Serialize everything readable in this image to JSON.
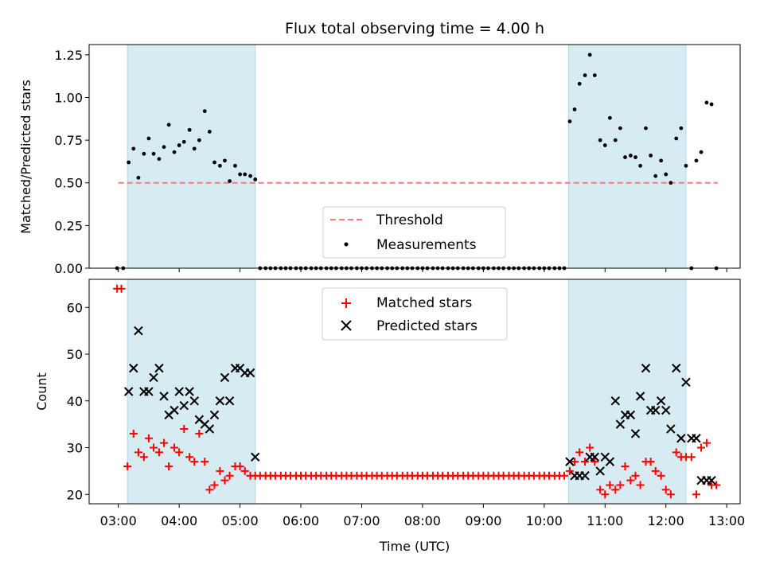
{
  "figure": {
    "title": "Flux total observing time = 4.00 h",
    "x_label": "Time (UTC)",
    "x_tick_labels": [
      "03:00",
      "04:00",
      "05:00",
      "06:00",
      "07:00",
      "08:00",
      "09:00",
      "10:00",
      "11:00",
      "12:00",
      "13:00"
    ]
  },
  "colors": {
    "threshold": "#f08080",
    "measurements": "#000000",
    "matched": "#ff0000",
    "predicted": "#000000",
    "shading": "#add8e6"
  },
  "chart_data": [
    {
      "type": "scatter",
      "panel": "top",
      "ylabel": "Matched/Predicted stars",
      "ylim": [
        0,
        1.31
      ],
      "y_tick_labels": [
        "0.00",
        "0.25",
        "0.50",
        "0.75",
        "1.00",
        "1.25"
      ],
      "x_unit": "hours UTC",
      "xlim": [
        2.52,
        13.22
      ],
      "shaded_intervals": [
        [
          3.15,
          5.25
        ],
        [
          10.4,
          12.33
        ]
      ],
      "threshold": {
        "name": "Threshold",
        "value": 0.5,
        "x_range": [
          3.0,
          12.85
        ]
      },
      "legend": [
        "Threshold",
        "Measurements"
      ],
      "legend_position": "lower center",
      "series": [
        {
          "name": "Measurements",
          "x": [
            2.98,
            3.08,
            3.17,
            3.25,
            3.33,
            3.42,
            3.5,
            3.58,
            3.67,
            3.75,
            3.83,
            3.92,
            4.0,
            4.08,
            4.17,
            4.25,
            4.33,
            4.42,
            4.5,
            4.58,
            4.67,
            4.75,
            4.83,
            4.92,
            5.0,
            5.08,
            5.17,
            5.25,
            5.33,
            5.42,
            5.5,
            5.58,
            5.67,
            5.75,
            5.83,
            5.92,
            6.0,
            6.08,
            6.17,
            6.25,
            6.33,
            6.42,
            6.5,
            6.58,
            6.67,
            6.75,
            6.83,
            6.92,
            7.0,
            7.08,
            7.17,
            7.25,
            7.33,
            7.42,
            7.5,
            7.58,
            7.67,
            7.75,
            7.83,
            7.92,
            8.0,
            8.08,
            8.17,
            8.25,
            8.33,
            8.42,
            8.5,
            8.58,
            8.67,
            8.75,
            8.83,
            8.92,
            9.0,
            9.08,
            9.17,
            9.25,
            9.33,
            9.42,
            9.5,
            9.58,
            9.67,
            9.75,
            9.83,
            9.92,
            10.0,
            10.08,
            10.17,
            10.25,
            10.33,
            10.42,
            10.5,
            10.58,
            10.67,
            10.75,
            10.83,
            10.92,
            11.0,
            11.08,
            11.17,
            11.25,
            11.33,
            11.42,
            11.5,
            11.58,
            11.67,
            11.75,
            11.83,
            11.92,
            12.0,
            12.08,
            12.17,
            12.25,
            12.33,
            12.42,
            12.5,
            12.58,
            12.67,
            12.75,
            12.83
          ],
          "y": [
            0.0,
            0.0,
            0.62,
            0.7,
            0.53,
            0.67,
            0.76,
            0.67,
            0.64,
            0.71,
            0.84,
            0.68,
            0.72,
            0.74,
            0.81,
            0.7,
            0.75,
            0.92,
            0.8,
            0.62,
            0.6,
            0.63,
            0.51,
            0.6,
            0.55,
            0.55,
            0.54,
            0.52,
            0.0,
            0.0,
            0.0,
            0.0,
            0.0,
            0.0,
            0.0,
            0.0,
            0.0,
            0.0,
            0.0,
            0.0,
            0.0,
            0.0,
            0.0,
            0.0,
            0.0,
            0.0,
            0.0,
            0.0,
            0.0,
            0.0,
            0.0,
            0.0,
            0.0,
            0.0,
            0.0,
            0.0,
            0.0,
            0.0,
            0.0,
            0.0,
            0.0,
            0.0,
            0.0,
            0.0,
            0.0,
            0.0,
            0.0,
            0.0,
            0.0,
            0.0,
            0.0,
            0.0,
            0.0,
            0.0,
            0.0,
            0.0,
            0.0,
            0.0,
            0.0,
            0.0,
            0.0,
            0.0,
            0.0,
            0.0,
            0.0,
            0.0,
            0.0,
            0.0,
            0.0,
            0.86,
            0.93,
            1.08,
            1.13,
            1.25,
            1.13,
            0.75,
            0.72,
            0.88,
            0.75,
            0.82,
            0.65,
            0.66,
            0.65,
            0.6,
            0.82,
            0.66,
            0.54,
            0.63,
            0.55,
            0.5,
            0.76,
            0.82,
            0.6,
            0.0,
            0.63,
            0.68,
            0.97,
            0.96,
            0.0
          ]
        }
      ]
    },
    {
      "type": "scatter",
      "panel": "bottom",
      "ylabel": "Count",
      "ylim": [
        18,
        66
      ],
      "y_tick_labels": [
        "20",
        "30",
        "40",
        "50",
        "60"
      ],
      "x_unit": "hours UTC",
      "xlim": [
        2.52,
        13.22
      ],
      "shaded_intervals": [
        [
          3.15,
          5.25
        ],
        [
          10.4,
          12.33
        ]
      ],
      "legend": [
        "Matched stars",
        "Predicted stars"
      ],
      "legend_position": "upper center",
      "series": [
        {
          "name": "Matched stars",
          "marker": "plus",
          "x": [
            2.98,
            3.05,
            3.15,
            3.25,
            3.33,
            3.42,
            3.5,
            3.58,
            3.67,
            3.75,
            3.83,
            3.92,
            4.0,
            4.08,
            4.17,
            4.25,
            4.33,
            4.42,
            4.5,
            4.58,
            4.67,
            4.75,
            4.83,
            4.92,
            5.0,
            5.08,
            5.17,
            5.25,
            5.33,
            5.42,
            5.5,
            5.58,
            5.67,
            5.75,
            5.83,
            5.92,
            6.0,
            6.08,
            6.17,
            6.25,
            6.33,
            6.42,
            6.5,
            6.58,
            6.67,
            6.75,
            6.83,
            6.92,
            7.0,
            7.08,
            7.17,
            7.25,
            7.33,
            7.42,
            7.5,
            7.58,
            7.67,
            7.75,
            7.83,
            7.92,
            8.0,
            8.08,
            8.17,
            8.25,
            8.33,
            8.42,
            8.5,
            8.58,
            8.67,
            8.75,
            8.83,
            8.92,
            9.0,
            9.08,
            9.17,
            9.25,
            9.33,
            9.42,
            9.5,
            9.58,
            9.67,
            9.75,
            9.83,
            9.92,
            10.0,
            10.08,
            10.17,
            10.25,
            10.33,
            10.42,
            10.5,
            10.58,
            10.67,
            10.75,
            10.83,
            10.92,
            11.0,
            11.08,
            11.17,
            11.25,
            11.33,
            11.42,
            11.5,
            11.58,
            11.67,
            11.75,
            11.83,
            11.92,
            12.0,
            12.08,
            12.17,
            12.25,
            12.33,
            12.42,
            12.5,
            12.58,
            12.67,
            12.75,
            12.83
          ],
          "y": [
            64,
            64,
            26,
            33,
            29,
            28,
            32,
            30,
            29,
            31,
            26,
            30,
            29,
            34,
            28,
            27,
            33,
            27,
            21,
            22,
            25,
            23,
            24,
            26,
            26,
            25,
            24,
            24,
            24,
            24,
            24,
            24,
            24,
            24,
            24,
            24,
            24,
            24,
            24,
            24,
            24,
            24,
            24,
            24,
            24,
            24,
            24,
            24,
            24,
            24,
            24,
            24,
            24,
            24,
            24,
            24,
            24,
            24,
            24,
            24,
            24,
            24,
            24,
            24,
            24,
            24,
            24,
            24,
            24,
            24,
            24,
            24,
            24,
            24,
            24,
            24,
            24,
            24,
            24,
            24,
            24,
            24,
            24,
            24,
            24,
            24,
            24,
            24,
            24,
            25,
            27,
            29,
            27,
            30,
            27,
            21,
            20,
            22,
            21,
            22,
            26,
            23,
            24,
            22,
            27,
            27,
            25,
            24,
            21,
            20,
            29,
            28,
            28,
            28,
            20,
            30,
            31,
            22,
            22
          ]
        },
        {
          "name": "Predicted stars",
          "marker": "x",
          "x": [
            3.17,
            3.25,
            3.33,
            3.42,
            3.5,
            3.58,
            3.67,
            3.75,
            3.83,
            3.92,
            4.0,
            4.08,
            4.17,
            4.25,
            4.33,
            4.42,
            4.5,
            4.58,
            4.67,
            4.75,
            4.83,
            4.92,
            5.0,
            5.08,
            5.17,
            5.25,
            10.42,
            10.5,
            10.58,
            10.67,
            10.75,
            10.83,
            10.92,
            11.0,
            11.08,
            11.17,
            11.25,
            11.33,
            11.42,
            11.5,
            11.58,
            11.67,
            11.75,
            11.83,
            11.92,
            12.0,
            12.08,
            12.17,
            12.25,
            12.33,
            12.42,
            12.5,
            12.58,
            12.67,
            12.75
          ],
          "y": [
            42,
            47,
            55,
            42,
            42,
            45,
            47,
            41,
            37,
            38,
            42,
            39,
            42,
            40,
            36,
            35,
            34,
            37,
            40,
            45,
            40,
            47,
            47,
            46,
            46,
            28,
            27,
            24,
            24,
            24,
            28,
            28,
            25,
            28,
            27,
            40,
            35,
            37,
            37,
            33,
            41,
            47,
            38,
            38,
            40,
            38,
            34,
            47,
            32,
            44,
            32,
            32,
            23,
            23,
            23
          ]
        }
      ]
    }
  ]
}
